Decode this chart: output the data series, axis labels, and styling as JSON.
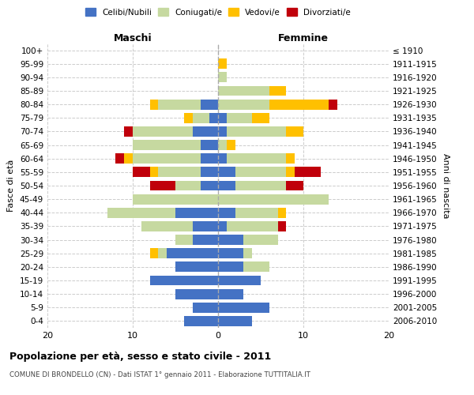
{
  "age_groups": [
    "100+",
    "95-99",
    "90-94",
    "85-89",
    "80-84",
    "75-79",
    "70-74",
    "65-69",
    "60-64",
    "55-59",
    "50-54",
    "45-49",
    "40-44",
    "35-39",
    "30-34",
    "25-29",
    "20-24",
    "15-19",
    "10-14",
    "5-9",
    "0-4"
  ],
  "birth_years": [
    "≤ 1910",
    "1911-1915",
    "1916-1920",
    "1921-1925",
    "1926-1930",
    "1931-1935",
    "1936-1940",
    "1941-1945",
    "1946-1950",
    "1951-1955",
    "1956-1960",
    "1961-1965",
    "1966-1970",
    "1971-1975",
    "1976-1980",
    "1981-1985",
    "1986-1990",
    "1991-1995",
    "1996-2000",
    "2001-2005",
    "2006-2010"
  ],
  "colors": {
    "celibi": "#4472c4",
    "coniugati": "#c6d9a0",
    "vedovi": "#ffc000",
    "divorziati": "#c0000b"
  },
  "maschi": {
    "celibi": [
      0,
      0,
      0,
      0,
      2,
      1,
      3,
      2,
      2,
      2,
      2,
      0,
      5,
      3,
      3,
      6,
      5,
      8,
      5,
      3,
      4
    ],
    "coniugati": [
      0,
      0,
      0,
      0,
      5,
      2,
      7,
      8,
      8,
      5,
      3,
      10,
      8,
      6,
      2,
      1,
      0,
      0,
      0,
      0,
      0
    ],
    "vedovi": [
      0,
      0,
      0,
      0,
      1,
      1,
      0,
      0,
      1,
      1,
      0,
      0,
      0,
      0,
      0,
      1,
      0,
      0,
      0,
      0,
      0
    ],
    "divorziati": [
      0,
      0,
      0,
      0,
      0,
      0,
      1,
      0,
      1,
      2,
      3,
      0,
      0,
      0,
      0,
      0,
      0,
      0,
      0,
      0,
      0
    ]
  },
  "femmine": {
    "celibi": [
      0,
      0,
      0,
      0,
      0,
      1,
      1,
      0,
      1,
      2,
      2,
      0,
      2,
      1,
      3,
      3,
      3,
      5,
      3,
      6,
      4
    ],
    "coniugati": [
      0,
      0,
      1,
      6,
      6,
      3,
      7,
      1,
      7,
      6,
      6,
      13,
      5,
      6,
      4,
      1,
      3,
      0,
      0,
      0,
      0
    ],
    "vedovi": [
      0,
      1,
      0,
      2,
      7,
      2,
      2,
      1,
      1,
      1,
      0,
      0,
      1,
      0,
      0,
      0,
      0,
      0,
      0,
      0,
      0
    ],
    "divorziati": [
      0,
      0,
      0,
      0,
      1,
      0,
      0,
      0,
      0,
      3,
      2,
      0,
      0,
      1,
      0,
      0,
      0,
      0,
      0,
      0,
      0
    ]
  },
  "title": "Popolazione per età, sesso e stato civile - 2011",
  "subtitle": "COMUNE DI BRONDELLO (CN) - Dati ISTAT 1° gennaio 2011 - Elaborazione TUTTITALIA.IT",
  "xlabel_left": "Maschi",
  "xlabel_right": "Femmine",
  "ylabel_left": "Fasce di età",
  "ylabel_right": "Anni di nascita",
  "xlim": 20,
  "legend_labels": [
    "Celibi/Nubili",
    "Coniugati/e",
    "Vedovi/e",
    "Divorziati/e"
  ],
  "background_color": "#ffffff"
}
